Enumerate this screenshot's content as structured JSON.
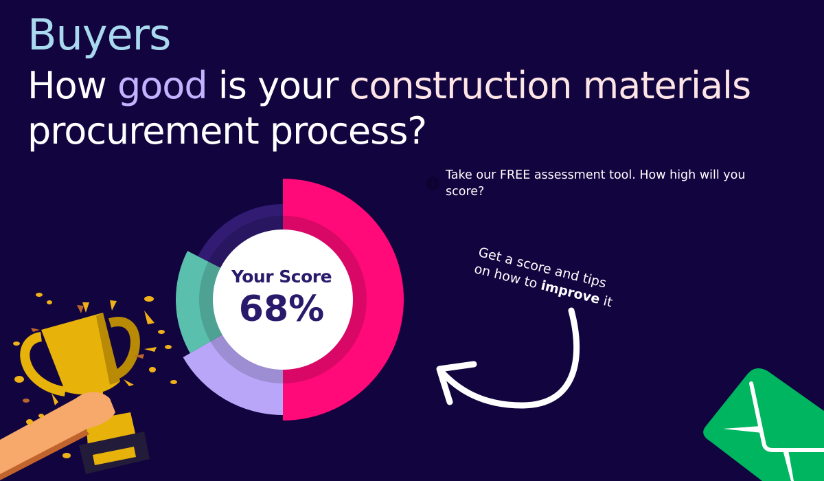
{
  "header": {
    "kicker": "Buyers",
    "headline_part1": "How ",
    "headline_highlight1": "good",
    "headline_part2": " is your ",
    "headline_highlight2": "construction materials",
    "headline_part3": " procurement process?"
  },
  "promo": {
    "tagline": "Take our FREE assessment tool. How high will you score?",
    "info_icon": "info-icon",
    "scribble_line1": "Get a score and tips",
    "scribble_line2_prefix": "on how to ",
    "scribble_bold": "improve",
    "scribble_suffix": " it"
  },
  "score": {
    "label": "Your Score",
    "value_text": "68%",
    "value": 68
  },
  "colors": {
    "background": "#12043f",
    "pink": "#ff0a78",
    "lavender": "#b9a6f8",
    "teal": "#5bbfad",
    "dark_purple": "#311b73",
    "envelope_green": "#00b560",
    "trophy_gold": "#e7b20a"
  },
  "icons": [
    "trophy-illustration",
    "envelope-icon",
    "curved-arrow-icon",
    "info-icon"
  ]
}
